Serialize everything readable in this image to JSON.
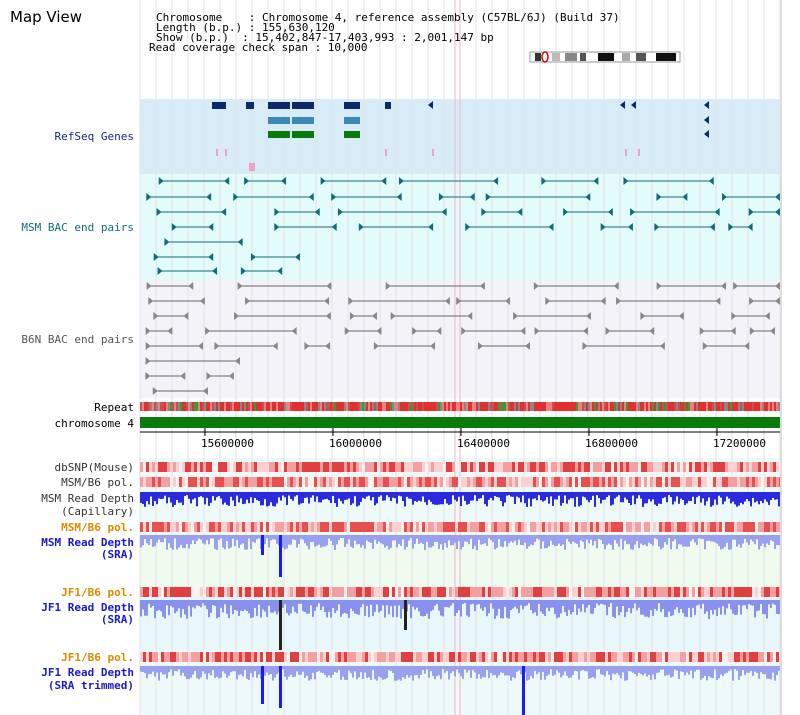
{
  "header": {
    "title": "Map View",
    "info_lines": [
      "Chromosome    : Chromosome 4, reference assembly (C57BL/6J) (Build 37)",
      "Length (b.p.) : 155,630,120",
      "Show (b.p.)  : 15,402,847-17,403,993 : 2,001,147 bp",
      "Read coverage check span : 10,000"
    ]
  },
  "tracks": {
    "refseq": "RefSeq Genes",
    "msm_bac": "MSM BAC end pairs",
    "b6n_bac": "B6N BAC end pairs",
    "repeat": "Repeat",
    "chromosome": "chromosome 4",
    "dbsnp": "dbSNP(Mouse)",
    "msm_b6_pol_1": "MSM/B6 pol.",
    "msm_read_cap_1": "MSM Read Depth",
    "msm_read_cap_2": "(Capillary)",
    "msm_b6_pol_2": "MSM/B6 pol.",
    "msm_read_sra_1": "MSM Read Depth",
    "msm_read_sra_2": "(SRA)",
    "jf1_b6_pol_1": "JF1/B6 pol.",
    "jf1_read_sra_1": "JF1 Read Depth",
    "jf1_read_sra_2": "(SRA)",
    "jf1_b6_pol_2": "JF1/B6 pol.",
    "jf1_read_trim_1": "JF1 Read Depth",
    "jf1_read_trim_2": "(SRA trimmed)"
  },
  "axis": {
    "ticks": [
      "15600000",
      "16000000",
      "16400000",
      "16800000",
      "17200000"
    ]
  },
  "colors": {
    "refseq_bg": "#d8ecf8",
    "msm_bg": "#e4fbfb",
    "b6n_bg": "#f4f4f8",
    "chromosome_green": "#0a7a0a",
    "teal": "#106e7a",
    "navy": "#0a2a6a",
    "pink": "#f4a0c8"
  }
}
